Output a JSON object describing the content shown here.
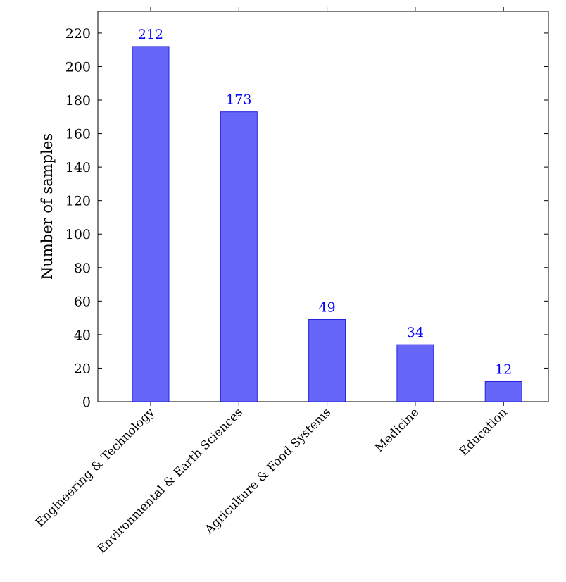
{
  "chart_data": {
    "type": "bar",
    "title": "",
    "xlabel": "",
    "ylabel": "Number of samples",
    "categories": [
      "Engineering & Technology",
      "Environmental & Earth Sciences",
      "Agriculture & Food Systems",
      "Medicine",
      "Education"
    ],
    "values": [
      212,
      173,
      49,
      34,
      12
    ],
    "data_labels": [
      "212",
      "173",
      "49",
      "34",
      "12"
    ],
    "ylim": [
      0,
      233
    ],
    "yticks": [
      0,
      20,
      40,
      60,
      80,
      100,
      120,
      140,
      160,
      180,
      200,
      220
    ],
    "grid": false,
    "legend": "none",
    "colors": {
      "bar_fill": "#6666f8",
      "bar_stroke": "#2222dd",
      "data_label": "#0000ff",
      "axis": "#000000"
    }
  }
}
